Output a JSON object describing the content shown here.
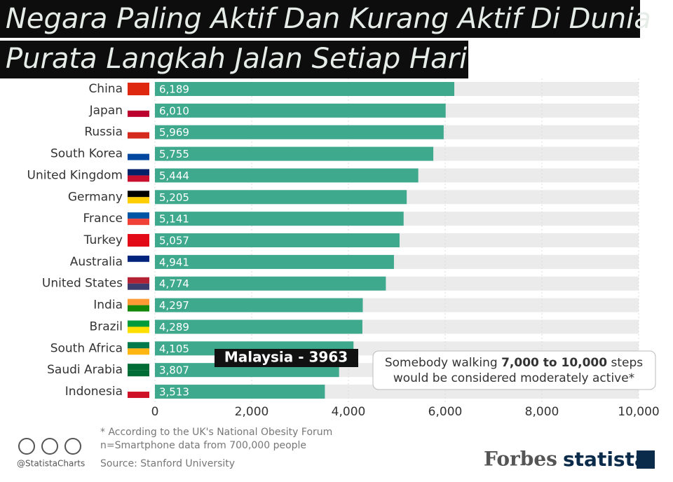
{
  "chart_data": {
    "type": "bar",
    "orientation": "horizontal",
    "title": "Negara Paling Aktif Dan Kurang Aktif Di Dunia",
    "subtitle": "Purata Langkah Jalan Setiap Hari",
    "categories": [
      "China",
      "Japan",
      "Russia",
      "South Korea",
      "United Kingdom",
      "Germany",
      "France",
      "Turkey",
      "Australia",
      "United States",
      "India",
      "Brazil",
      "South Africa",
      "Saudi Arabia",
      "Indonesia"
    ],
    "values": [
      6189,
      6010,
      5969,
      5755,
      5444,
      5205,
      5141,
      5057,
      4941,
      4774,
      4297,
      4289,
      4105,
      3807,
      3513
    ],
    "value_labels": [
      "6,189",
      "6,010",
      "5,969",
      "5,755",
      "5,444",
      "5,205",
      "5,141",
      "5,057",
      "4,941",
      "4,774",
      "4,297",
      "4,289",
      "4,105",
      "3,807",
      "3,513"
    ],
    "color": "#3fa98e",
    "track_color": "#ebebeb",
    "xlim": [
      0,
      10000
    ],
    "xticks": [
      0,
      {
        "value": 2000,
        "label": "2,000"
      },
      {
        "value": 4000,
        "label": "4,000"
      },
      {
        "value": 6000,
        "label": "6,000"
      },
      {
        "value": 8000,
        "label": "8,000"
      },
      {
        "value": 10000,
        "label": "10,000"
      }
    ],
    "grid": true,
    "annotation": "Malaysia - 3963",
    "note": {
      "before": "Somebody walking ",
      "bold": "7,000 to 10,000",
      "after": " steps",
      "line2": "would be considered moderately active*"
    },
    "footnotes": [
      "* According to the UK's National Obesity Forum",
      "n=Smartphone data from 700,000 people"
    ],
    "source": "Source: Stanford University",
    "handle": "@StatistaCharts",
    "brands": [
      "Forbes",
      "statista"
    ]
  }
}
